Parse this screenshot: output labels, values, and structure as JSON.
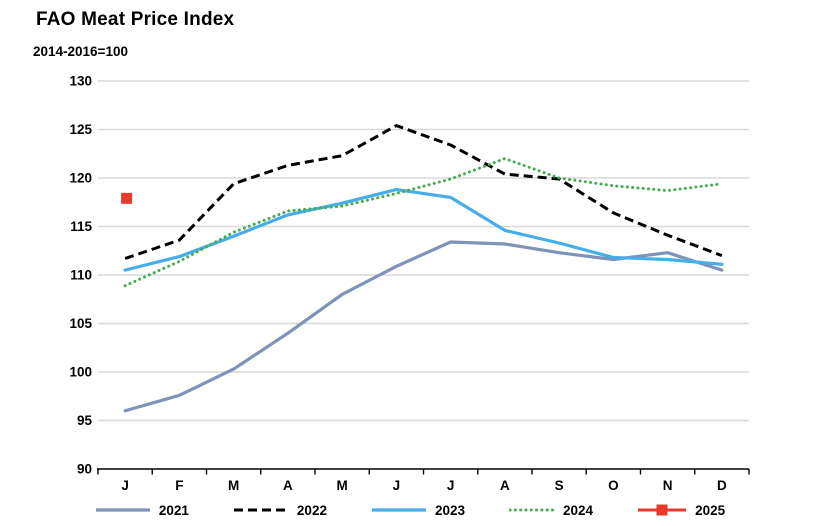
{
  "header": {
    "title": "FAO Meat Price Index",
    "subtitle": "2014-2016=100"
  },
  "chart_data": {
    "type": "line",
    "title": "FAO Meat Price Index",
    "subtitle": "2014-2016=100",
    "categories": [
      "J",
      "F",
      "M",
      "A",
      "M",
      "J",
      "J",
      "A",
      "S",
      "O",
      "N",
      "D"
    ],
    "y_ticks": [
      90,
      95,
      100,
      105,
      110,
      115,
      120,
      125,
      130
    ],
    "ylim": [
      90,
      130
    ],
    "xlabel": "",
    "ylabel": "",
    "grid": "horizontal",
    "legend_position": "bottom",
    "colors": {
      "gridline": "#D9D9D9",
      "axis": "#000000"
    },
    "series": [
      {
        "name": "2021",
        "style": "solid",
        "color": "#7E93B7",
        "values": [
          96.0,
          97.6,
          100.3,
          104.0,
          108.0,
          110.9,
          113.4,
          113.2,
          112.3,
          111.6,
          112.3,
          110.5
        ]
      },
      {
        "name": "2022",
        "style": "dashed",
        "color": "#000000",
        "values": [
          111.7,
          113.6,
          119.4,
          121.3,
          122.3,
          125.4,
          123.4,
          120.4,
          119.9,
          116.4,
          114.1,
          112.0
        ]
      },
      {
        "name": "2023",
        "style": "solid",
        "color": "#45AEE9",
        "values": [
          110.5,
          111.9,
          114.0,
          116.2,
          117.4,
          118.8,
          118.0,
          114.6,
          113.3,
          111.8,
          111.6,
          111.1
        ]
      },
      {
        "name": "2024",
        "style": "dotted",
        "color": "#45AC4F",
        "values": [
          108.9,
          111.4,
          114.4,
          116.6,
          117.1,
          118.4,
          119.9,
          122.0,
          120.0,
          119.2,
          118.7,
          119.4
        ]
      },
      {
        "name": "2025",
        "style": "square-point",
        "color": "#E83A2D",
        "values": [
          117.9
        ]
      }
    ]
  }
}
